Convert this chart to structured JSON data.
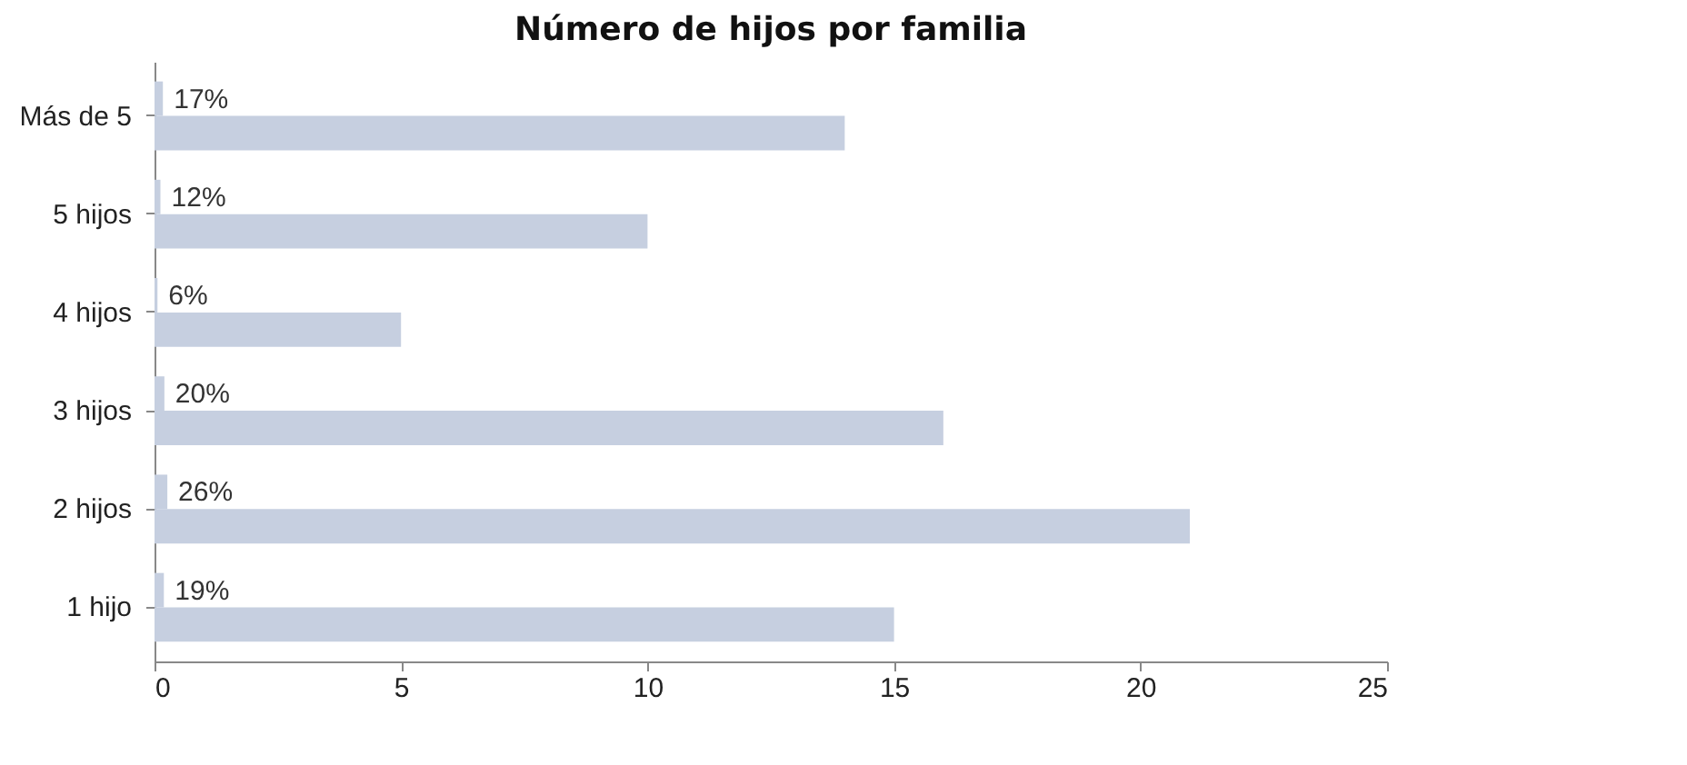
{
  "chart_data": {
    "type": "bar",
    "orientation": "horizontal",
    "title": "Número de hijos por familia",
    "categories": [
      "Más de 5",
      "5 hijos",
      "4 hijos",
      "3 hijos",
      "2 hijos",
      "1 hijo"
    ],
    "series": [
      {
        "color": "#c6cfe0",
        "values": [
          0.17,
          0.12,
          0.06,
          0.2,
          0.26,
          0.19
        ],
        "value_labels": [
          "17%",
          "12%",
          "6%",
          "20%",
          "26%",
          "19%"
        ]
      },
      {
        "color": "#c6cfe0",
        "values": [
          14,
          10,
          5,
          16,
          21,
          15
        ]
      }
    ],
    "xlim": [
      0,
      25
    ],
    "xticks": [
      0,
      5,
      10,
      15,
      20,
      25
    ],
    "grid": false,
    "legend": false
  }
}
